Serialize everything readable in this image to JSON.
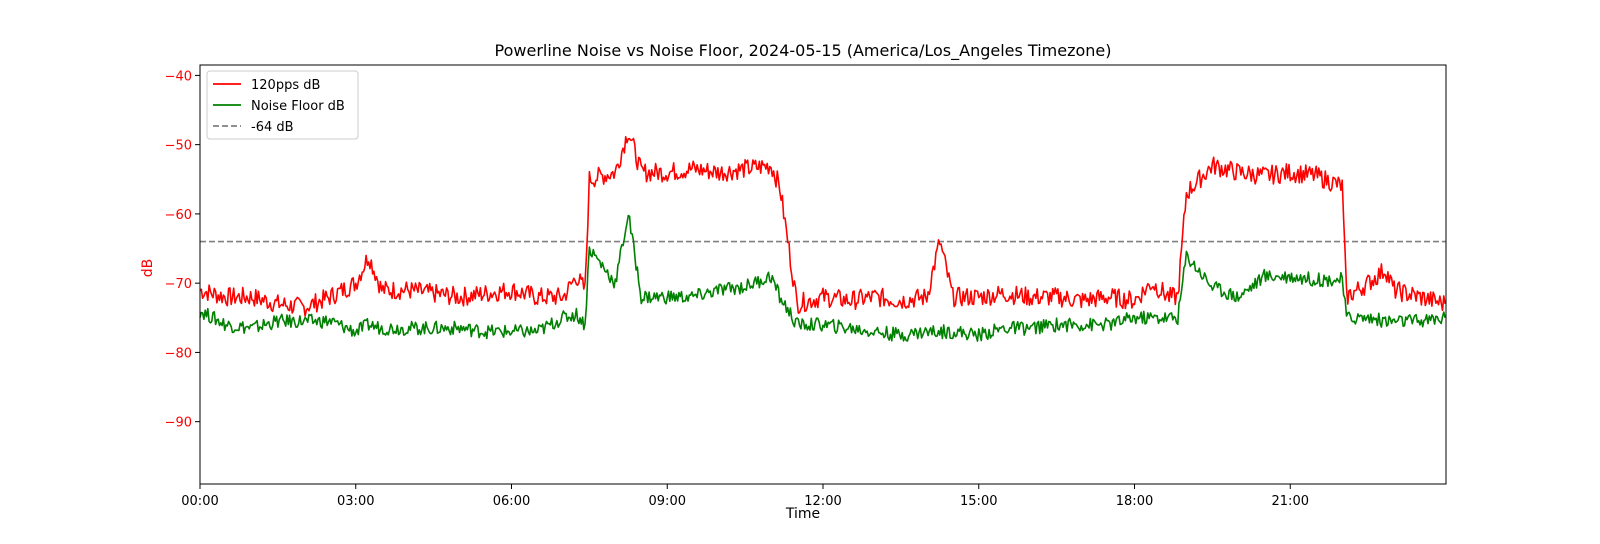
{
  "chart_data": {
    "type": "line",
    "title": "Powerline Noise vs Noise Floor, 2024-05-15 (America/Los_Angeles Timezone)",
    "xlabel": "Time",
    "ylabel": "dB",
    "ylabel_color": "#ff0000",
    "ytick_color": "#ff0000",
    "xlim": [
      "00:00",
      "24:00"
    ],
    "ylim": [
      -99,
      -38.5
    ],
    "x_ticks": [
      "00:00",
      "03:00",
      "06:00",
      "09:00",
      "12:00",
      "15:00",
      "18:00",
      "21:00"
    ],
    "y_ticks": [
      -40,
      -50,
      -60,
      -70,
      -80,
      -90
    ],
    "grid": false,
    "legend_position": "upper-left",
    "x": [
      "00:00",
      "00:30",
      "01:00",
      "01:30",
      "02:00",
      "02:30",
      "03:00",
      "03:15",
      "03:30",
      "04:00",
      "04:30",
      "05:00",
      "05:30",
      "06:00",
      "06:30",
      "07:00",
      "07:15",
      "07:25",
      "07:30",
      "08:00",
      "08:15",
      "08:30",
      "09:00",
      "09:30",
      "10:00",
      "10:30",
      "11:00",
      "11:10",
      "11:30",
      "12:00",
      "12:30",
      "13:00",
      "13:30",
      "14:00",
      "14:15",
      "14:30",
      "15:00",
      "15:30",
      "16:00",
      "16:30",
      "17:00",
      "17:30",
      "18:00",
      "18:20",
      "18:40",
      "18:50",
      "19:00",
      "19:30",
      "20:00",
      "20:30",
      "21:00",
      "21:30",
      "22:00",
      "22:05",
      "22:30",
      "22:50",
      "23:00",
      "23:30",
      "23:59"
    ],
    "series": [
      {
        "name": "120pps dB",
        "color": "#ff0000",
        "style": "solid",
        "values": [
          -71,
          -72,
          -72,
          -73,
          -73.5,
          -72,
          -70,
          -66,
          -71,
          -71,
          -71.5,
          -72,
          -71.5,
          -71,
          -72,
          -72,
          -69,
          -71,
          -55,
          -54,
          -48,
          -54,
          -54,
          -53.5,
          -54,
          -53.5,
          -53,
          -56,
          -73,
          -72,
          -72.5,
          -72,
          -72.5,
          -72,
          -64,
          -72,
          -72,
          -71.5,
          -72,
          -72,
          -72.5,
          -72,
          -72.5,
          -70,
          -72,
          -72,
          -57,
          -53,
          -54,
          -54.5,
          -54,
          -54.5,
          -56,
          -72,
          -70,
          -68,
          -71,
          -72,
          -73
        ]
      },
      {
        "name": "Noise Floor dB",
        "color": "#008000",
        "style": "solid",
        "values": [
          -74,
          -76,
          -76.5,
          -75.5,
          -75.5,
          -75.5,
          -77,
          -76,
          -76.5,
          -76.5,
          -76.5,
          -76.5,
          -77,
          -77,
          -77,
          -75,
          -74.5,
          -76,
          -65,
          -70,
          -60,
          -72,
          -72,
          -72,
          -71,
          -70.5,
          -69,
          -72,
          -76,
          -76,
          -76.5,
          -77,
          -77.5,
          -77,
          -77,
          -77,
          -77.5,
          -76.5,
          -76.5,
          -76,
          -76,
          -76,
          -75,
          -75,
          -75,
          -75,
          -66,
          -70.5,
          -72,
          -69,
          -69,
          -69.5,
          -69.5,
          -75,
          -75,
          -75.5,
          -75.5,
          -75.5,
          -75
        ]
      }
    ],
    "reference_lines": [
      {
        "name": "-64 dB",
        "y": -64,
        "color": "#808080",
        "style": "dashed"
      }
    ]
  }
}
